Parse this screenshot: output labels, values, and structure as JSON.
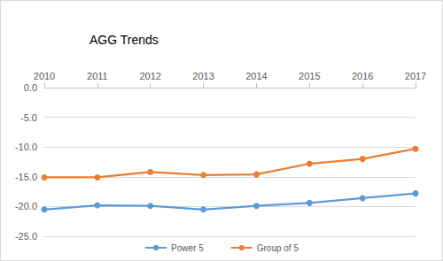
{
  "chart_data": {
    "type": "line",
    "title": "AGG Trends",
    "categories": [
      "2010",
      "2011",
      "2012",
      "2013",
      "2014",
      "2015",
      "2016",
      "2017"
    ],
    "series": [
      {
        "name": "Power 5",
        "color": "#5b9bd5",
        "marker": "circle",
        "values": [
          -20.5,
          -19.8,
          -19.9,
          -20.5,
          -19.9,
          -19.4,
          -18.6,
          -17.8
        ]
      },
      {
        "name": "Group of 5",
        "color": "#ed7d31",
        "marker": "circle",
        "values": [
          -15.1,
          -15.1,
          -14.2,
          -14.7,
          -14.6,
          -12.8,
          -12.0,
          -10.3
        ]
      }
    ],
    "ylim": [
      -25,
      0
    ],
    "yticks": [
      {
        "value": -25,
        "label": "-25.0"
      },
      {
        "value": -20,
        "label": "-20.0"
      },
      {
        "value": -15,
        "label": "-15.0"
      },
      {
        "value": -10,
        "label": "-10.0"
      },
      {
        "value": -5,
        "label": "-5.0"
      },
      {
        "value": 0,
        "label": "0.0"
      }
    ],
    "grid": true,
    "legend": "bottom"
  }
}
